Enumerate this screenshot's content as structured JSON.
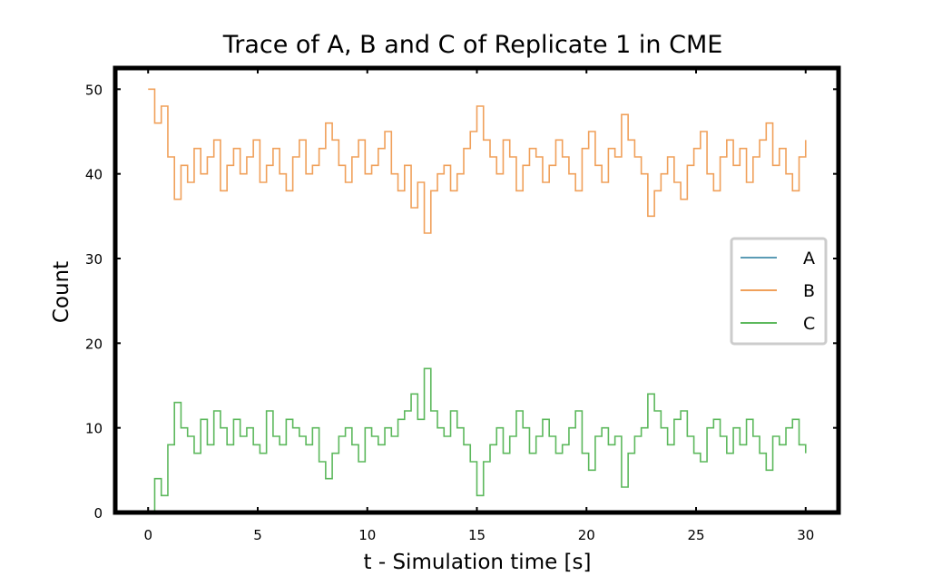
{
  "chart_data": {
    "type": "line",
    "title": "Trace of A, B and C of Replicate 1 in CME",
    "xlabel": "t - Simulation time [s]",
    "ylabel": "Count",
    "xlim": [
      -1.5,
      31.5
    ],
    "ylim": [
      0,
      52.5
    ],
    "xticks": [
      0,
      5,
      10,
      15,
      20,
      25,
      30
    ],
    "yticks": [
      0,
      10,
      20,
      30,
      40,
      50
    ],
    "grid": false,
    "legend_position": "center-right",
    "x": [
      0,
      0.3,
      0.6,
      0.9,
      1.2,
      1.5,
      1.8,
      2.1,
      2.4,
      2.7,
      3.0,
      3.3,
      3.6,
      3.9,
      4.2,
      4.5,
      4.8,
      5.1,
      5.4,
      5.7,
      6.0,
      6.3,
      6.6,
      6.9,
      7.2,
      7.5,
      7.8,
      8.1,
      8.4,
      8.7,
      9.0,
      9.3,
      9.6,
      9.9,
      10.2,
      10.5,
      10.8,
      11.1,
      11.4,
      11.7,
      12.0,
      12.3,
      12.6,
      12.9,
      13.2,
      13.5,
      13.8,
      14.1,
      14.4,
      14.7,
      15.0,
      15.3,
      15.6,
      15.9,
      16.2,
      16.5,
      16.8,
      17.1,
      17.4,
      17.7,
      18.0,
      18.3,
      18.6,
      18.9,
      19.2,
      19.5,
      19.8,
      20.1,
      20.4,
      20.7,
      21.0,
      21.3,
      21.6,
      21.9,
      22.2,
      22.5,
      22.8,
      23.1,
      23.4,
      23.7,
      24.0,
      24.3,
      24.6,
      24.9,
      25.2,
      25.5,
      25.8,
      26.1,
      26.4,
      26.7,
      27.0,
      27.3,
      27.6,
      27.9,
      28.2,
      28.5,
      28.8,
      29.1,
      29.4,
      29.7,
      30.0
    ],
    "series": [
      {
        "name": "A",
        "color": "#5b9bb5",
        "values": [
          0,
          0,
          0,
          0,
          0,
          0,
          0,
          0,
          0,
          0,
          0,
          0,
          0,
          0,
          0,
          0,
          0,
          0,
          0,
          0,
          0,
          0,
          0,
          0,
          0,
          0,
          0,
          0,
          0,
          0,
          0,
          0,
          0,
          0,
          0,
          0,
          0,
          0,
          0,
          0,
          0,
          0,
          0,
          0,
          0,
          0,
          0,
          0,
          0,
          0,
          0,
          0,
          0,
          0,
          0,
          0,
          0,
          0,
          0,
          0,
          0,
          0,
          0,
          0,
          0,
          0,
          0,
          0,
          0,
          0,
          0,
          0,
          0,
          0,
          0,
          0,
          0,
          0,
          0,
          0,
          0,
          0,
          0,
          0,
          0,
          0,
          0,
          0,
          0,
          0,
          0,
          0,
          0,
          0,
          0,
          0,
          0,
          0,
          0,
          0,
          0
        ]
      },
      {
        "name": "B",
        "color": "#f0a05a",
        "values": [
          50,
          46,
          48,
          42,
          37,
          41,
          39,
          43,
          40,
          42,
          44,
          38,
          41,
          43,
          40,
          42,
          44,
          39,
          41,
          43,
          40,
          38,
          42,
          44,
          40,
          41,
          43,
          46,
          44,
          41,
          39,
          42,
          44,
          40,
          41,
          43,
          45,
          40,
          38,
          41,
          36,
          39,
          33,
          38,
          40,
          41,
          38,
          40,
          43,
          45,
          48,
          44,
          42,
          40,
          44,
          42,
          38,
          41,
          43,
          42,
          39,
          41,
          44,
          42,
          40,
          38,
          43,
          45,
          41,
          39,
          43,
          42,
          47,
          44,
          42,
          40,
          35,
          38,
          40,
          42,
          39,
          37,
          41,
          43,
          45,
          40,
          38,
          42,
          44,
          41,
          43,
          39,
          42,
          44,
          46,
          41,
          43,
          40,
          38,
          42,
          44
        ]
      },
      {
        "name": "C",
        "color": "#5cb85c",
        "values": [
          0,
          4,
          2,
          8,
          13,
          10,
          9,
          7,
          11,
          8,
          12,
          10,
          8,
          11,
          9,
          10,
          8,
          7,
          12,
          9,
          8,
          11,
          10,
          9,
          8,
          10,
          6,
          4,
          7,
          9,
          10,
          8,
          6,
          10,
          9,
          8,
          10,
          9,
          11,
          12,
          14,
          11,
          17,
          12,
          10,
          9,
          12,
          10,
          8,
          6,
          2,
          6,
          8,
          10,
          7,
          9,
          12,
          10,
          7,
          9,
          11,
          9,
          7,
          8,
          10,
          12,
          7,
          5,
          9,
          10,
          8,
          9,
          3,
          7,
          9,
          10,
          14,
          12,
          10,
          8,
          11,
          12,
          9,
          7,
          6,
          10,
          11,
          9,
          7,
          10,
          8,
          11,
          9,
          7,
          5,
          9,
          8,
          10,
          11,
          8,
          7
        ]
      }
    ]
  }
}
